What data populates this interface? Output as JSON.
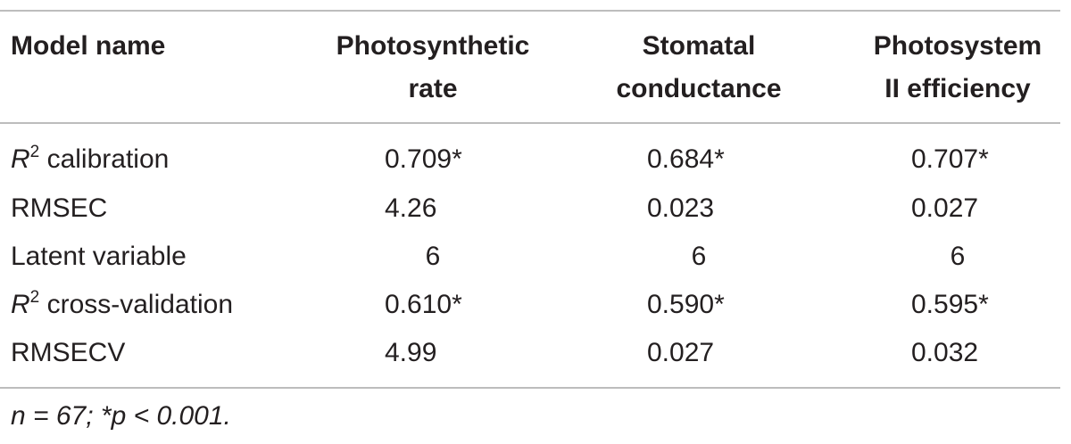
{
  "table": {
    "headers": [
      {
        "line1": "Model name",
        "line2": ""
      },
      {
        "line1": "Photosynthetic",
        "line2": "rate"
      },
      {
        "line1": "Stomatal",
        "line2": "conductance"
      },
      {
        "line1": "Photosystem",
        "line2": "II efficiency"
      }
    ],
    "rows": [
      {
        "label_italic": "R",
        "label_sup": "2",
        "label_rest": " calibration",
        "values": [
          "0.709*",
          "0.684*",
          "0.707*"
        ]
      },
      {
        "label_italic": "",
        "label_sup": "",
        "label_rest": "RMSEC",
        "values": [
          "4.26",
          "0.023",
          "0.027"
        ]
      },
      {
        "label_italic": "",
        "label_sup": "",
        "label_rest": "Latent variable",
        "values": [
          "6",
          "6",
          "6"
        ]
      },
      {
        "label_italic": "R",
        "label_sup": "2",
        "label_rest": " cross-validation",
        "values": [
          "0.610*",
          "0.590*",
          "0.595*"
        ]
      },
      {
        "label_italic": "",
        "label_sup": "",
        "label_rest": "RMSECV",
        "values": [
          "4.99",
          "0.027",
          "0.032"
        ]
      }
    ]
  },
  "footnote": "n = 67; *p < 0.001."
}
